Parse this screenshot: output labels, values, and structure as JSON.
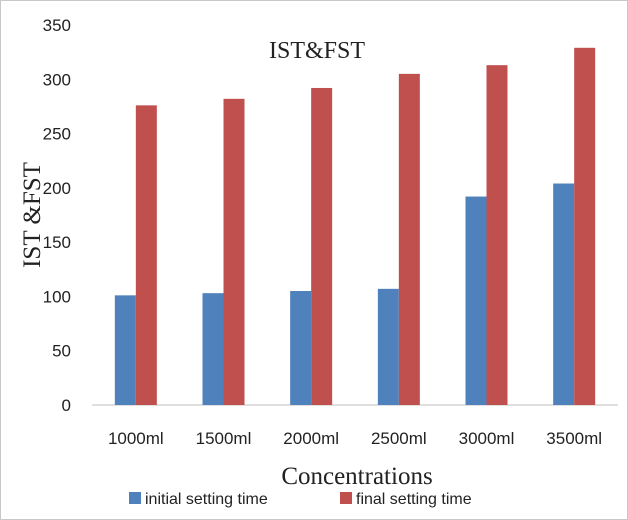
{
  "chart_data": {
    "type": "bar",
    "title": "IST&FST",
    "xlabel": "Concentrations",
    "ylabel": "IST &FST",
    "categories": [
      "1000ml",
      "1500ml",
      "2000ml",
      "2500ml",
      "3000ml",
      "3500ml"
    ],
    "series": [
      {
        "name": "initial setting time",
        "color": "#4f81bd",
        "values": [
          101,
          103,
          105,
          107,
          192,
          204
        ]
      },
      {
        "name": "final setting time",
        "color": "#c0504d",
        "values": [
          276,
          282,
          292,
          305,
          313,
          329
        ]
      }
    ],
    "ylim": [
      0,
      350
    ],
    "yticks": [
      0,
      50,
      100,
      150,
      200,
      250,
      300,
      350
    ],
    "grid": false,
    "legend_position": "bottom"
  }
}
